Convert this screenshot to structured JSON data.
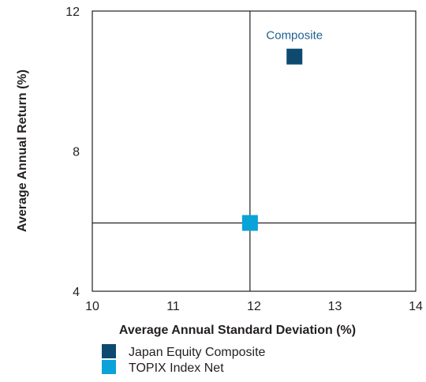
{
  "chart_data": {
    "type": "scatter",
    "xlabel": "Average Annual Standard Deviation (%)",
    "ylabel": "Average Annual Return (%)",
    "xlim": [
      10,
      14
    ],
    "ylim": [
      4,
      12
    ],
    "x_ticks": [
      "10",
      "11",
      "12",
      "13",
      "14"
    ],
    "y_ticks": [
      "12",
      "8",
      "4"
    ],
    "grid": false,
    "crosshair": {
      "x": 11.95,
      "y": 5.95
    },
    "legend_position": "bottom-left",
    "series": [
      {
        "name": "Japan Equity Composite",
        "color": "#0e4a70",
        "x": 12.5,
        "y": 10.7,
        "label": "Composite"
      },
      {
        "name": "TOPIX Index Net",
        "color": "#0aa3d9",
        "x": 11.95,
        "y": 5.95,
        "label": ""
      }
    ]
  }
}
